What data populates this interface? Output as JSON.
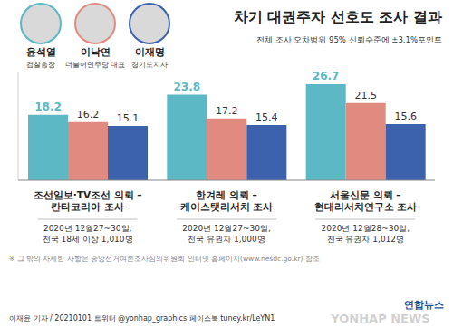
{
  "chart_data": {
    "type": "bar",
    "title": "차기 대권주자 선호도 조사 결과",
    "subtitle": "전체 조사 오차범위 95% 신뢰수준에 ±3.1%포인트",
    "categories": [
      "조선일보·TV조선 의뢰 –\n칸타코리아 조사",
      "한겨레 의뢰 –\n케이스탯리서치 조사",
      "서울신문 의뢰 –\n현대리서치연구소 조사"
    ],
    "category_notes": [
      "2020년 12월27~30일,\n전국 18세 이상 1,010명",
      "2020년 12월27~30일,\n전국 유권자 1,000명",
      "2020년 12월28~30일,\n전국 유권자 1,012명"
    ],
    "series": [
      {
        "name": "윤석열",
        "role": "검찰총장",
        "color": "#5bb8c4",
        "values": [
          18.2,
          23.8,
          26.7
        ]
      },
      {
        "name": "이낙연",
        "role": "더불어민주당 대표",
        "color": "#e08a80",
        "values": [
          16.2,
          17.2,
          21.5
        ]
      },
      {
        "name": "이재명",
        "role": "경기도지사",
        "color": "#3d62ad",
        "values": [
          15.1,
          15.4,
          15.6
        ]
      }
    ],
    "ylim": [
      0,
      30
    ],
    "yticks": [
      0,
      30
    ],
    "tick_labels": "x",
    "grid": false,
    "data_labels": true,
    "annotations": [
      "※ 그 밖의 자세한 사항은 중앙선거여론조사심의위원회 인터넷 홈페이지(www.nesdc.go.kr) 참조",
      "이재윤 기자 / 20210101  트위터 @yonhap_graphics  페이스북 tuney.kr/LeYN1",
      "연합뉴스",
      "YONHAP NEWS"
    ]
  }
}
